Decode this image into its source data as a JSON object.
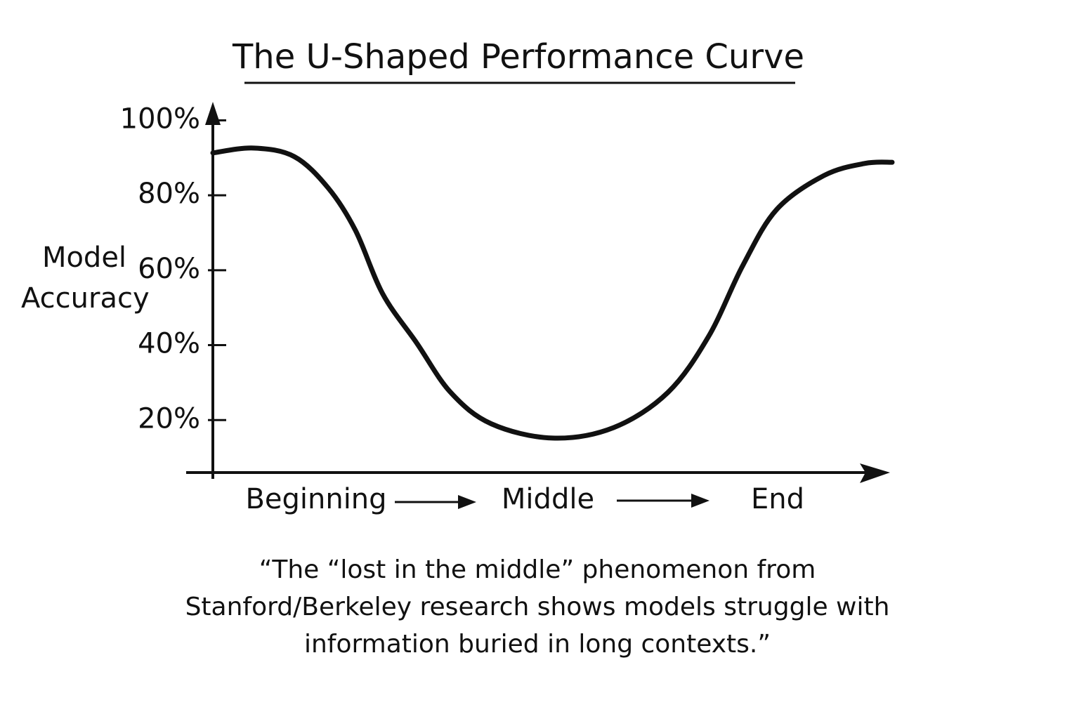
{
  "chart_data": {
    "type": "line",
    "title": "The U-Shaped Performance Curve",
    "y_label": "Model Accuracy",
    "x_axis_labels": [
      "Beginning",
      "Middle",
      "End"
    ],
    "caption": "“The “lost in the middle” phenomenon from Stanford/Berkeley research shows models struggle with information buried in long contexts.”",
    "x": [
      0,
      6,
      12,
      17,
      21,
      25,
      30,
      35,
      41,
      50,
      59,
      67,
      73,
      78,
      83,
      90,
      96,
      100
    ],
    "values": [
      91.3,
      92.6,
      90.3,
      81.9,
      70.6,
      53.7,
      40.6,
      27.4,
      19,
      15.2,
      18,
      27.4,
      42.4,
      61.2,
      76.2,
      85.3,
      88.5,
      88.8
    ],
    "color": "#111111",
    "xlim": [
      0,
      100
    ],
    "ylim": [
      6,
      104
    ],
    "yticks": [
      {
        "value": 20,
        "label": "20%"
      },
      {
        "value": 40,
        "label": "40%"
      },
      {
        "value": 60,
        "label": "60%"
      },
      {
        "value": 80,
        "label": "80%"
      },
      {
        "value": 100,
        "label": "100%"
      }
    ]
  }
}
